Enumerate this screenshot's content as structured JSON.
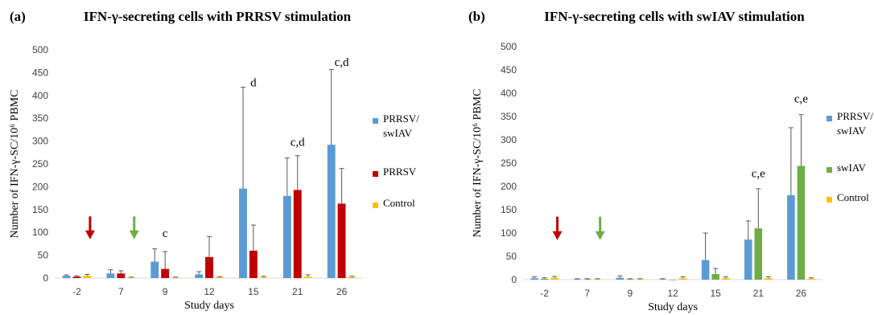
{
  "chart_data": [
    {
      "type": "bar",
      "panel_label": "(a)",
      "title": "IFN-γ-secreting cells with PRRSV stimulation",
      "xlabel": "Study days",
      "ylabel": "Number of IFN-γ-SC/10⁶ PBMC",
      "ylim": [
        0,
        500
      ],
      "yticks": [
        "0",
        "50",
        "100",
        "150",
        "200",
        "250",
        "300",
        "350",
        "400",
        "450",
        "500"
      ],
      "categories": [
        "-2",
        "7",
        "9",
        "12",
        "15",
        "21",
        "26"
      ],
      "series": [
        {
          "name": "PRRSV/ swIAV",
          "legend_lines": [
            "PRRSV/",
            "swIAV"
          ],
          "color": "#5B9BD5",
          "values": [
            5,
            10,
            36,
            8,
            196,
            180,
            292
          ],
          "errors": [
            2,
            8,
            28,
            6,
            222,
            83,
            165
          ]
        },
        {
          "name": "PRRSV",
          "legend_lines": [
            "PRRSV"
          ],
          "color": "#C00000",
          "values": [
            3,
            10,
            20,
            46,
            60,
            193,
            163
          ],
          "errors": [
            2,
            6,
            38,
            45,
            56,
            75,
            77
          ]
        },
        {
          "name": "Control",
          "legend_lines": [
            "Control"
          ],
          "color": "#FFC000",
          "values": [
            5,
            1,
            1,
            2,
            2,
            3,
            2
          ],
          "errors": [
            3,
            1,
            1,
            1,
            2,
            4,
            2
          ]
        }
      ],
      "annotations": [
        {
          "category": "9",
          "text": "c",
          "y": 90
        },
        {
          "category": "15",
          "text": "d",
          "y": 420
        },
        {
          "category": "21",
          "text": "c,d",
          "y": 290
        },
        {
          "category": "26",
          "text": "c,d",
          "y": 465
        }
      ],
      "arrows": [
        {
          "between": [
            "-2",
            "7"
          ],
          "position": 0.3,
          "color": "#C00000"
        },
        {
          "between": [
            "7",
            "9"
          ],
          "position": 0.3,
          "color": "#70AD47"
        }
      ],
      "grid": false,
      "legend_position": "right"
    },
    {
      "type": "bar",
      "panel_label": "(b)",
      "title": "IFN-γ-secreting cells with swIAV stimulation",
      "xlabel": "Study days",
      "ylabel": "Number of IFN-γ-SC/10⁶ PBMC",
      "ylim": [
        0,
        500
      ],
      "yticks": [
        "0",
        "50",
        "100",
        "150",
        "200",
        "250",
        "300",
        "350",
        "400",
        "450",
        "500"
      ],
      "categories": [
        "-2",
        "7",
        "9",
        "12",
        "15",
        "21",
        "26"
      ],
      "series": [
        {
          "name": "PRRSV/ swIAV",
          "legend_lines": [
            "PRRSV/",
            "swIAV"
          ],
          "color": "#5B9BD5",
          "values": [
            3,
            1,
            4,
            1,
            42,
            86,
            181
          ],
          "errors": [
            3,
            1,
            4,
            1,
            58,
            40,
            145
          ]
        },
        {
          "name": "swIAV",
          "legend_lines": [
            "swIAV"
          ],
          "color": "#70AD47",
          "values": [
            2,
            1,
            1,
            0,
            12,
            110,
            244
          ],
          "errors": [
            2,
            1,
            1,
            0,
            12,
            85,
            110
          ]
        },
        {
          "name": "Control",
          "legend_lines": [
            "Control"
          ],
          "color": "#FFC000",
          "values": [
            4,
            1,
            1,
            3,
            3,
            3,
            2
          ],
          "errors": [
            3,
            1,
            1,
            3,
            3,
            3,
            2
          ]
        }
      ],
      "annotations": [
        {
          "category": "21",
          "text": "c,e",
          "y": 220
        },
        {
          "category": "26",
          "text": "c,e",
          "y": 380
        }
      ],
      "arrows": [
        {
          "between": [
            "-2",
            "7"
          ],
          "position": 0.3,
          "color": "#C00000"
        },
        {
          "between": [
            "7",
            "9"
          ],
          "position": 0.3,
          "color": "#70AD47"
        }
      ],
      "grid": false,
      "legend_position": "right"
    }
  ]
}
